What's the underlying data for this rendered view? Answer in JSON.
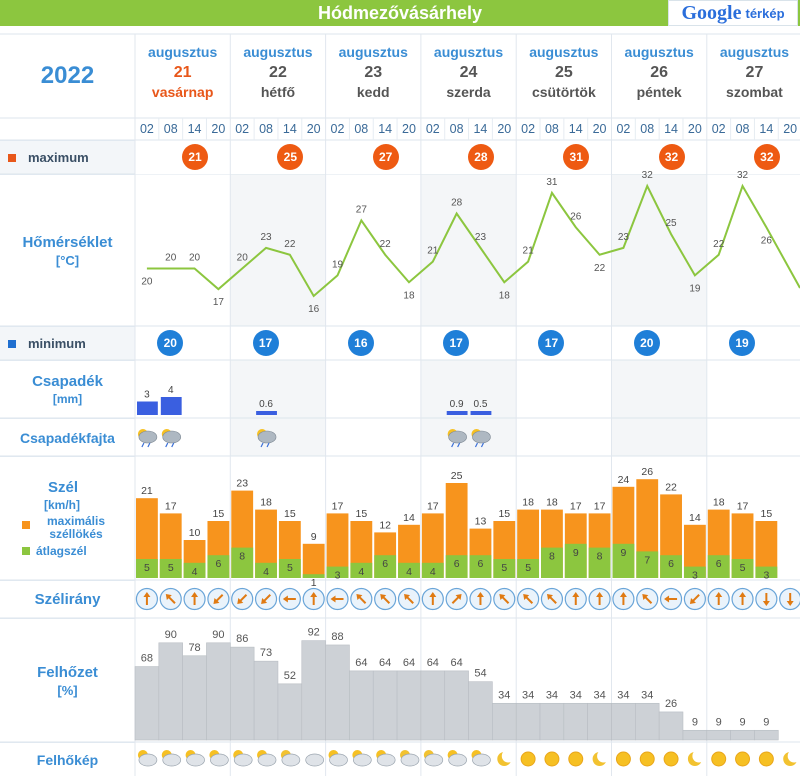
{
  "header": {
    "title": "Hódmezővásárhely",
    "logo_text": "Google",
    "logo_suffix": "térkép"
  },
  "year": "2022",
  "days": [
    {
      "month": "augusztus",
      "day": "21",
      "name": "vasárnap",
      "today": true
    },
    {
      "month": "augusztus",
      "day": "22",
      "name": "hétfő"
    },
    {
      "month": "augusztus",
      "day": "23",
      "name": "kedd"
    },
    {
      "month": "augusztus",
      "day": "24",
      "name": "szerda"
    },
    {
      "month": "augusztus",
      "day": "25",
      "name": "csütörtök"
    },
    {
      "month": "augusztus",
      "day": "26",
      "name": "péntek"
    },
    {
      "month": "augusztus",
      "day": "27",
      "name": "szombat"
    }
  ],
  "hours": [
    "02",
    "08",
    "14",
    "20"
  ],
  "labels": {
    "maximum": "maximum",
    "temperature": "Hőmérséklet",
    "temperature_unit": "[°C]",
    "minimum": "minimum",
    "precip": "Csapadék",
    "precip_unit": "[mm]",
    "precip_type": "Csapadékfajta",
    "wind": "Szél",
    "wind_unit": "[km/h]",
    "wind_gust": "maximális széllökés",
    "wind_avg": "átlagszél",
    "wind_dir": "Szélirány",
    "cloud": "Felhőzet",
    "cloud_unit": "[%]",
    "cloud_image": "Felhőkép"
  },
  "colors": {
    "accent": "#3a8dd4",
    "max_badge": "#ee5a12",
    "min_badge": "#1f7fd8",
    "temp_line": "#8cc63f",
    "gust": "#f7941d",
    "avg": "#8cc63f",
    "precip": "#3a5fe0",
    "cloud": "#cdd1d6",
    "header": "#8cc63f"
  },
  "max_temps": [
    "21",
    "25",
    "27",
    "28",
    "31",
    "32",
    "32"
  ],
  "min_temps": [
    "20",
    "17",
    "16",
    "17",
    "17",
    "20",
    "19"
  ],
  "chart_data": [
    {
      "type": "line",
      "name": "temperature",
      "values": [
        20,
        20,
        20,
        17,
        20,
        23,
        22,
        16,
        19,
        27,
        22,
        18,
        21,
        28,
        23,
        18,
        21,
        31,
        26,
        22,
        23,
        32,
        25,
        19,
        22,
        32,
        26,
        null
      ]
    },
    {
      "type": "bar",
      "name": "precipitation",
      "values": [
        3,
        4,
        null,
        null,
        null,
        0.6,
        null,
        null,
        null,
        null,
        null,
        null,
        null,
        0.9,
        0.5,
        null,
        null,
        null,
        null,
        null,
        null,
        null,
        null,
        null,
        null,
        null,
        null,
        null
      ]
    },
    {
      "type": "bar",
      "name": "wind",
      "series": [
        {
          "name": "maximális széllökés",
          "values": [
            21,
            17,
            10,
            15,
            23,
            18,
            15,
            9,
            17,
            15,
            12,
            14,
            17,
            25,
            13,
            15,
            18,
            18,
            17,
            17,
            24,
            26,
            22,
            14,
            18,
            17,
            15,
            null
          ]
        },
        {
          "name": "átlagszél",
          "values": [
            5,
            5,
            4,
            6,
            8,
            4,
            5,
            1,
            3,
            4,
            6,
            4,
            4,
            6,
            6,
            5,
            5,
            8,
            9,
            8,
            9,
            7,
            6,
            3,
            6,
            5,
            3,
            null
          ]
        }
      ]
    },
    {
      "type": "bar",
      "name": "cloud",
      "values": [
        68,
        90,
        78,
        90,
        86,
        73,
        52,
        92,
        88,
        64,
        64,
        64,
        64,
        64,
        54,
        34,
        34,
        34,
        34,
        34,
        34,
        34,
        26,
        9,
        9,
        9,
        9,
        null
      ]
    }
  ],
  "precip_icons": [
    0,
    1,
    5,
    13,
    14
  ],
  "wind_dirs": [
    180,
    135,
    180,
    45,
    45,
    45,
    90,
    180,
    90,
    135,
    135,
    135,
    180,
    225,
    180,
    135,
    135,
    135,
    180,
    180,
    180,
    135,
    90,
    45,
    180,
    180,
    0,
    0
  ],
  "cloud_icons": [
    "cloudsun",
    "cloudsun",
    "cloudsun",
    "cloudsun",
    "cloudsun",
    "cloudsun",
    "cloudmoon",
    "cloud",
    "cloudsun",
    "cloudsun",
    "cloudsun",
    "cloudmoon",
    "cloudmoon",
    "cloudsun",
    "cloudsun",
    "moon",
    "sun",
    "sun",
    "sun",
    "moon",
    "sun",
    "sun",
    "sun",
    "moon",
    "sun",
    "sun",
    "sun",
    "moon"
  ]
}
